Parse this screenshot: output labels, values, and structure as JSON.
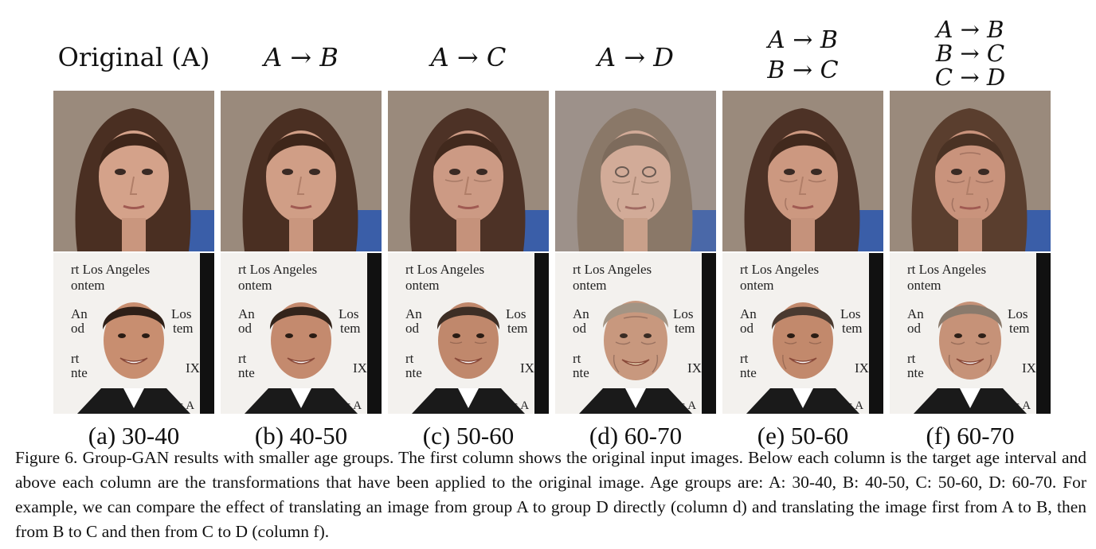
{
  "figure": {
    "columns": [
      {
        "id": "a",
        "header_lines": [
          "Original (A)"
        ],
        "caption": "(a) 30-40"
      },
      {
        "id": "b",
        "header_lines": [
          "A → B"
        ],
        "caption": "(b) 40-50"
      },
      {
        "id": "c",
        "header_lines": [
          "A → C"
        ],
        "caption": "(c) 50-60"
      },
      {
        "id": "d",
        "header_lines": [
          "A → D"
        ],
        "caption": "(d) 60-70"
      },
      {
        "id": "e",
        "header_lines": [
          "A → B",
          "B → C"
        ],
        "caption": "(e) 50-60"
      },
      {
        "id": "f",
        "header_lines": [
          "A → B",
          "B → C",
          "C → D"
        ],
        "caption": "(f) 60-70"
      }
    ],
    "rows": [
      {
        "subject": "woman-portrait"
      },
      {
        "subject": "man-portrait",
        "background_text": [
          "rt Los Angeles",
          "ontem",
          "Los",
          "tem",
          "An",
          "od",
          "rt",
          "nte",
          "IX",
          "os A"
        ]
      }
    ],
    "caption_label": "Figure 6.",
    "caption_text": "Group-GAN results with smaller age groups. The first column shows the original input images. Below each column is the target age interval and above each column are the transformations that have been applied to the original image. Age groups are: A: 30-40, B: 40-50, C: 50-60, D: 60-70. For example, we can compare the effect of translating an image from group A to group D directly (column d) and translating the image first from A to B, then from B to C and then from C to D (column f)."
  }
}
